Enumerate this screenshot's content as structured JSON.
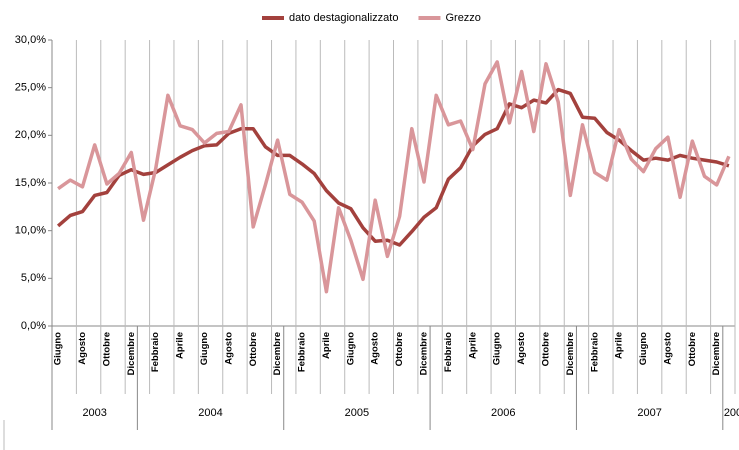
{
  "chart_data": {
    "type": "line",
    "categories": [
      "Giugno",
      null,
      "Agosto",
      null,
      "Ottobre",
      null,
      "Dicembre",
      null,
      "Febbraio",
      null,
      "Aprile",
      null,
      "Giugno",
      null,
      "Agosto",
      null,
      "Ottobre",
      null,
      "Dicembre",
      null,
      "Febbraio",
      null,
      "Aprile",
      null,
      "Giugno",
      null,
      "Agosto",
      null,
      "Ottobre",
      null,
      "Dicembre",
      null,
      "Febbraio",
      null,
      "Aprile",
      null,
      "Giugno",
      null,
      "Agosto",
      null,
      "Ottobre",
      null,
      "Dicembre",
      null,
      "Febbraio",
      null,
      "Aprile",
      null,
      "Giugno",
      null,
      "Agosto",
      null,
      "Ottobre",
      null,
      "Dicembre",
      null
    ],
    "years": [
      "2003",
      "2004",
      "2005",
      "2006",
      "2007",
      "200"
    ],
    "series": [
      {
        "name": "dato destagionalizzato",
        "color": "#a3413d",
        "values": [
          10.5,
          11.6,
          12.0,
          13.7,
          14.0,
          15.8,
          16.4,
          15.9,
          16.1,
          16.9,
          17.7,
          18.4,
          18.9,
          19.0,
          20.2,
          20.7,
          20.7,
          18.8,
          17.9,
          17.9,
          17.0,
          16.0,
          14.2,
          12.9,
          12.3,
          10.3,
          8.9,
          9.0,
          8.5,
          9.9,
          11.4,
          12.4,
          15.4,
          16.6,
          18.9,
          20.1,
          20.7,
          23.3,
          22.9,
          23.7,
          23.4,
          24.8,
          24.4,
          21.9,
          21.8,
          20.3,
          19.5,
          18.4,
          17.4,
          17.6,
          17.4,
          17.9,
          17.6,
          17.4,
          17.2,
          16.8
        ]
      },
      {
        "name": "Grezzo",
        "color": "#d9969a",
        "values": [
          14.4,
          15.3,
          14.6,
          19.0,
          14.9,
          16.0,
          18.2,
          11.1,
          16.5,
          24.2,
          21.0,
          20.6,
          19.2,
          20.2,
          20.4,
          23.2,
          10.4,
          14.8,
          19.5,
          13.8,
          13.0,
          11.0,
          3.6,
          12.4,
          9.0,
          4.9,
          13.2,
          7.3,
          11.5,
          20.7,
          15.1,
          24.2,
          21.1,
          21.5,
          18.5,
          25.4,
          27.7,
          21.3,
          26.7,
          20.4,
          27.5,
          23.5,
          13.7,
          21.1,
          16.1,
          15.3,
          20.6,
          17.5,
          16.2,
          18.6,
          19.8,
          13.5,
          19.4,
          15.7,
          14.8,
          17.8
        ]
      }
    ],
    "ylim": [
      0,
      30
    ],
    "yticks": [
      {
        "value": 0,
        "label": "0,0%"
      },
      {
        "value": 5,
        "label": "5,0%"
      },
      {
        "value": 10,
        "label": "10,0%"
      },
      {
        "value": 15,
        "label": "15,0%"
      },
      {
        "value": 20,
        "label": "20,0%"
      },
      {
        "value": 25,
        "label": "25,0%"
      },
      {
        "value": 30,
        "label": "30,0%"
      }
    ],
    "legend": "top"
  }
}
